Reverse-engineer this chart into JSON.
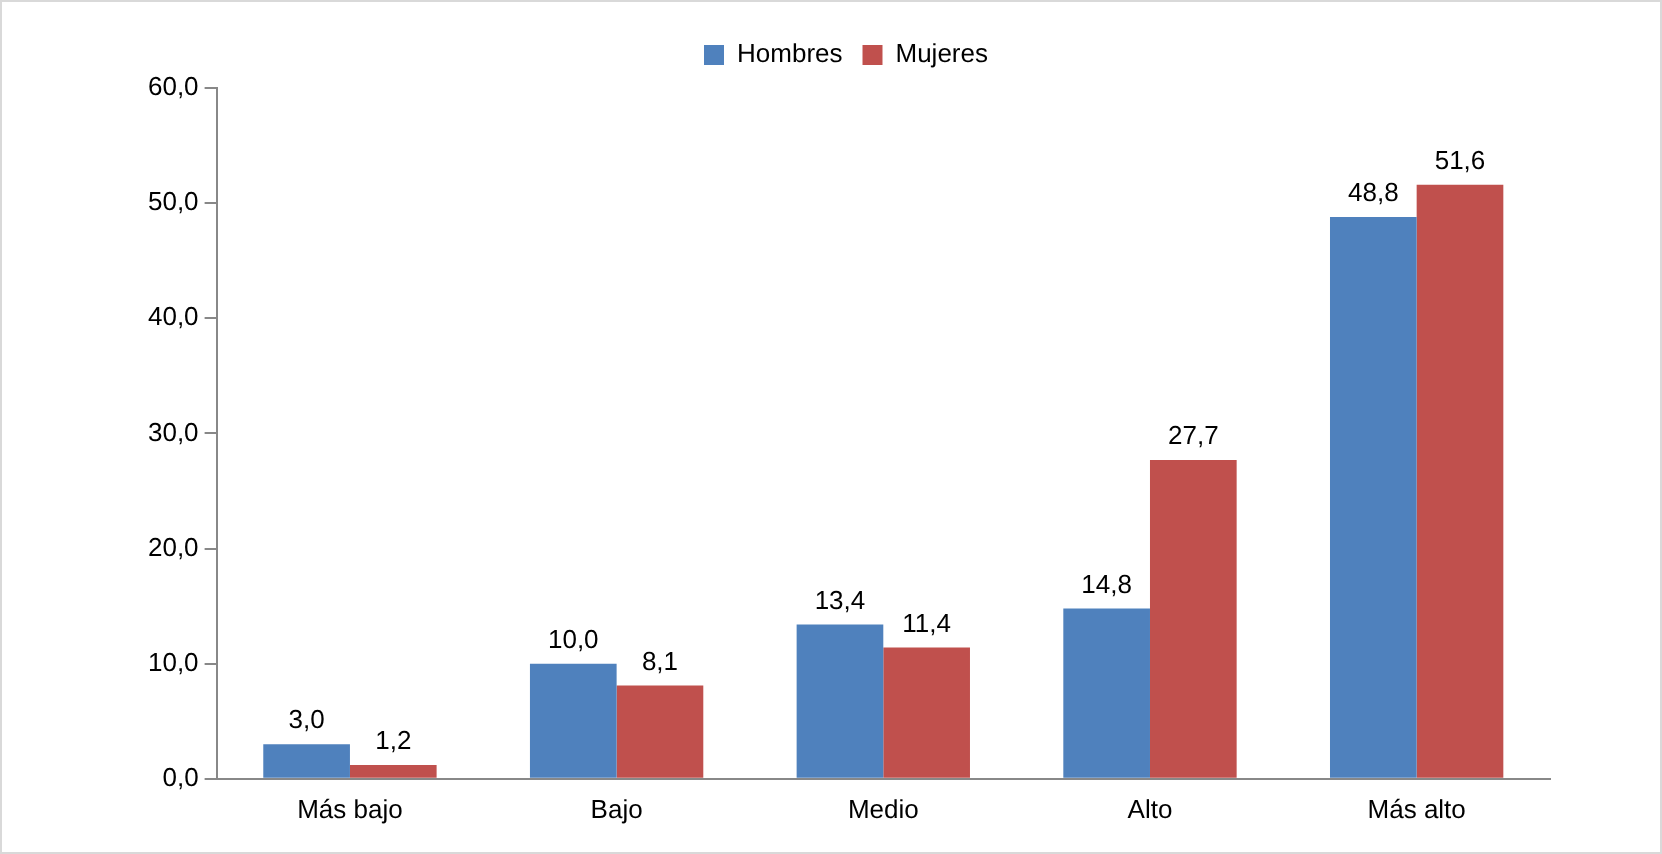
{
  "chart_data": {
    "type": "bar",
    "categories": [
      "Más bajo",
      "Bajo",
      "Medio",
      "Alto",
      "Más alto"
    ],
    "series": [
      {
        "name": "Hombres",
        "color": "#4f81bd",
        "values": [
          3.0,
          10.0,
          13.4,
          14.8,
          48.8
        ],
        "value_labels": [
          "3,0",
          "10,0",
          "13,4",
          "14,8",
          "48,8"
        ]
      },
      {
        "name": "Mujeres",
        "color": "#c0504d",
        "values": [
          1.2,
          8.1,
          11.4,
          27.7,
          51.6
        ],
        "value_labels": [
          "1,2",
          "8,1",
          "11,4",
          "27,7",
          "51,6"
        ]
      }
    ],
    "ylim": [
      0,
      60
    ],
    "yticks": [
      {
        "value": 0,
        "label": "0,0"
      },
      {
        "value": 10,
        "label": "10,0"
      },
      {
        "value": 20,
        "label": "20,0"
      },
      {
        "value": 30,
        "label": "30,0"
      },
      {
        "value": 40,
        "label": "40,0"
      },
      {
        "value": 50,
        "label": "50,0"
      },
      {
        "value": 60,
        "label": "60,0"
      }
    ],
    "grid": false,
    "legend": "top"
  }
}
